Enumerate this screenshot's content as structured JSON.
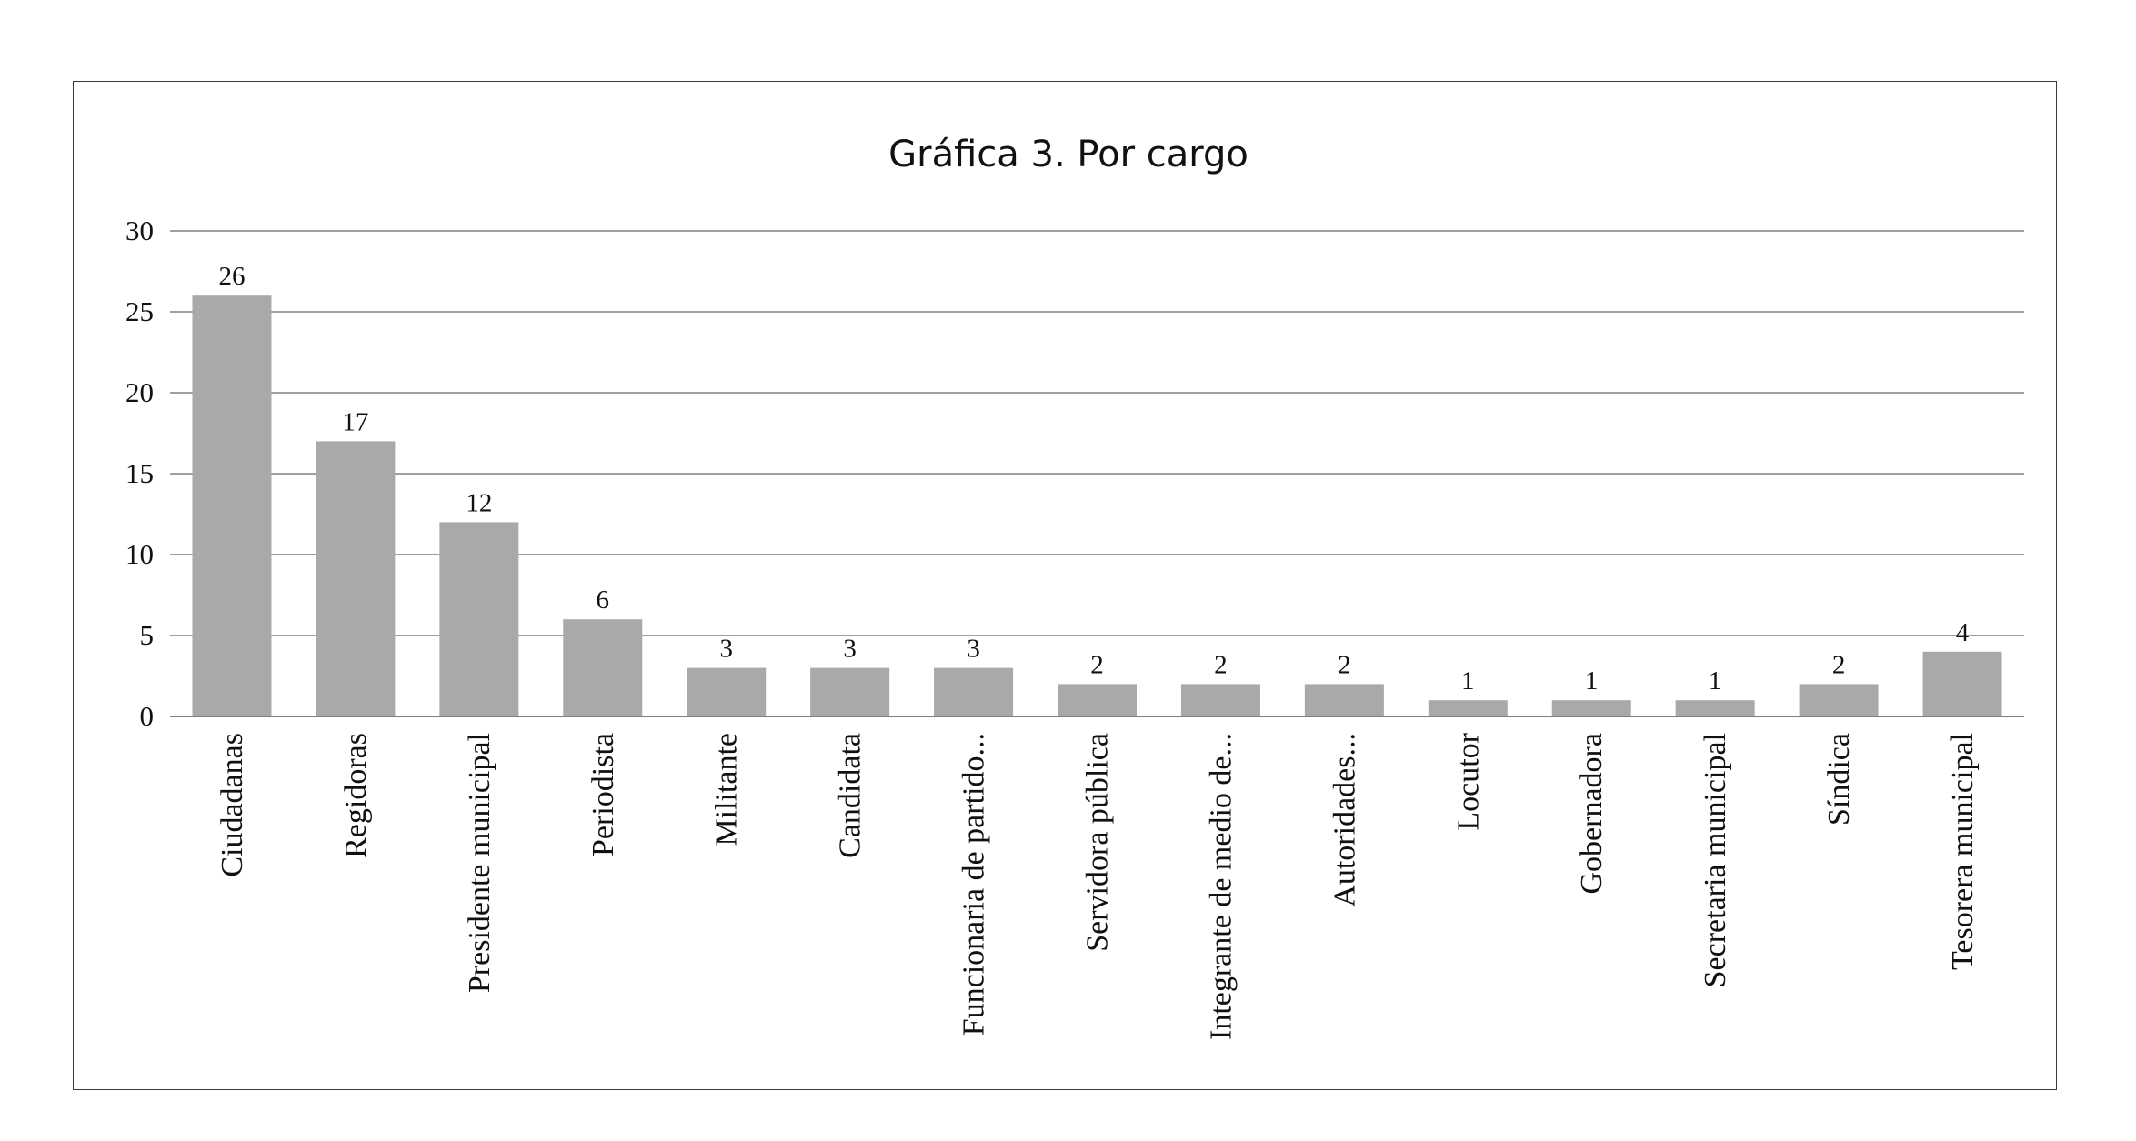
{
  "chart_data": {
    "type": "bar",
    "title": "Gráfica 3. Por cargo",
    "xlabel": "",
    "ylabel": "",
    "ylim": [
      0,
      30
    ],
    "yticks": [
      0,
      5,
      10,
      15,
      20,
      25,
      30
    ],
    "grid": true,
    "legend": "none",
    "bar_color": "#a9a9a9",
    "categories": [
      "Ciudadanas",
      "Regidoras",
      "Presidente municipal",
      "Periodista",
      "Militante",
      "Candidata",
      "Funcionaria de partido...",
      "Servidora pública",
      "Integrante de medio de...",
      "Autoridades...",
      "Locutor",
      "Gobernadora",
      "Secretaria municipal",
      "Síndica",
      "Tesorera municipal"
    ],
    "values": [
      26,
      17,
      12,
      6,
      3,
      3,
      3,
      2,
      2,
      2,
      1,
      1,
      1,
      2,
      4
    ]
  }
}
